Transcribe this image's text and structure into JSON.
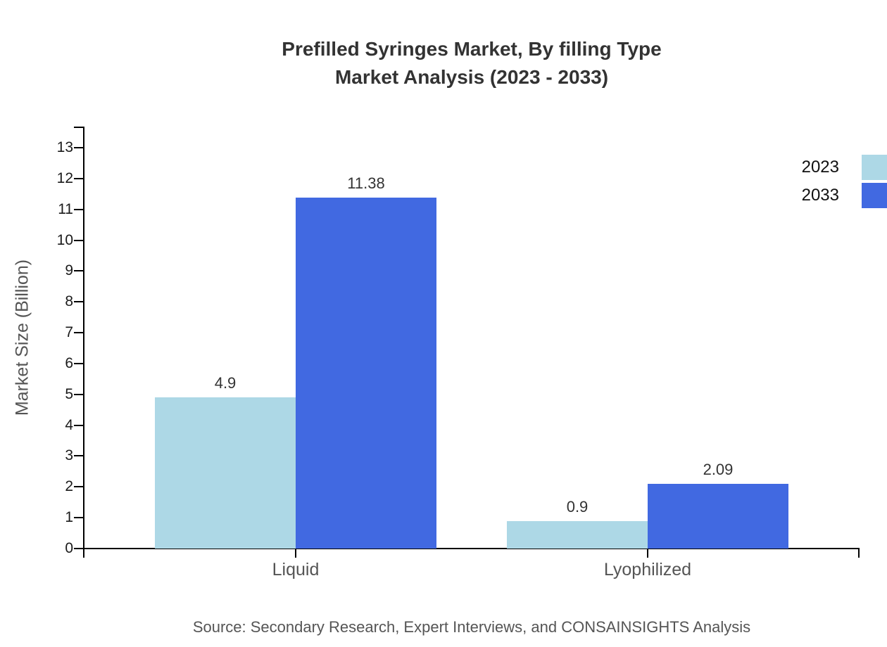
{
  "title": {
    "line1": "Prefilled Syringes Market, By filling Type",
    "line2": "Market Analysis (2023 - 2033)"
  },
  "chart_data": {
    "type": "bar",
    "categories": [
      "Liquid",
      "Lyophilized"
    ],
    "series": [
      {
        "name": "2023",
        "color": "#ADD8E6",
        "values": [
          4.9,
          0.9
        ]
      },
      {
        "name": "2033",
        "color": "#4169E1",
        "values": [
          11.38,
          2.09
        ]
      }
    ],
    "title": "Prefilled Syringes Market, By filling Type Market Analysis (2023 - 2033)",
    "xlabel": "",
    "ylabel": "Market Size (Billion)",
    "ylim": [
      0,
      13
    ],
    "ytick_step": 1,
    "grid": false,
    "legend_position": "top-right",
    "value_labels_shown": true
  },
  "source": "Source: Secondary Research, Expert Interviews, and CONSAINSIGHTS Analysis",
  "colors": {
    "axis": "#000000",
    "title_text": "#333333",
    "muted_text": "#555555",
    "tick_text": "#1a1a1a",
    "value_text": "#333333",
    "series_2023": "#ADD8E6",
    "series_2033": "#4169E1",
    "background": "#ffffff"
  }
}
